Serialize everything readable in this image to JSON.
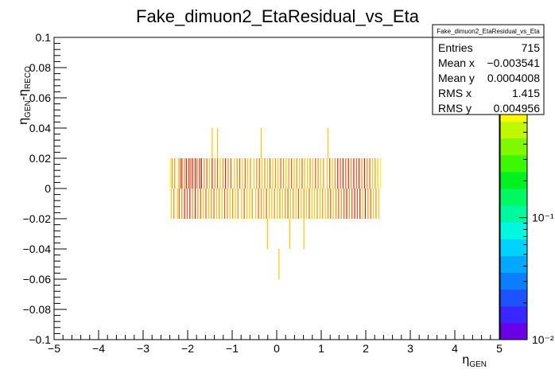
{
  "chart_data": {
    "type": "heatmap",
    "title": "Fake_dimuon2_EtaResidual_vs_Eta",
    "xlabel": "η_GEN",
    "ylabel": "η_GEN-η_RECO",
    "xlim": [
      -5,
      5
    ],
    "ylim": [
      -0.1,
      0.1
    ],
    "x_ticks": [
      "−5",
      "−4",
      "−3",
      "−2",
      "−1",
      "0",
      "1",
      "2",
      "3",
      "4",
      "5"
    ],
    "y_ticks": [
      "−0.1",
      "−0.08",
      "−0.06",
      "−0.04",
      "−0.02",
      "0",
      "0.02",
      "0.04",
      "0.06",
      "0.08",
      "0.1"
    ],
    "z_scale": "log",
    "z_ticks": [
      "10⁻²",
      "10⁻¹",
      "1"
    ],
    "z_range": [
      0.01,
      3
    ],
    "grid": false,
    "stats": {
      "name": "Fake_dimuon2_EtaResidual_vs_Eta",
      "rows": [
        {
          "label": "Entries",
          "value": "715"
        },
        {
          "label": "Mean x",
          "value": "−0.003541"
        },
        {
          "label": "Mean y",
          "value": "0.0004008"
        },
        {
          "label": "RMS x",
          "value": "1.415"
        },
        {
          "label": "RMS y",
          "value": "0.004956"
        }
      ]
    },
    "bins_dx": 0.02,
    "bins_dy": 0.02,
    "bins": [
      {
        "x": -2.4,
        "y": 0.01,
        "z": 0.8
      },
      {
        "x": -2.36,
        "y": 0.01,
        "z": 1.2
      },
      {
        "x": -2.3,
        "y": 0.01,
        "z": 1.5
      },
      {
        "x": -2.22,
        "y": 0.01,
        "z": 1.0
      },
      {
        "x": -2.18,
        "y": 0.01,
        "z": 2.0
      },
      {
        "x": -2.14,
        "y": 0.01,
        "z": 2.8
      },
      {
        "x": -2.08,
        "y": 0.01,
        "z": 1.4
      },
      {
        "x": -2.04,
        "y": 0.01,
        "z": 2.5
      },
      {
        "x": -1.98,
        "y": 0.01,
        "z": 2.9
      },
      {
        "x": -1.94,
        "y": 0.01,
        "z": 1.8
      },
      {
        "x": -1.9,
        "y": 0.01,
        "z": 2.6
      },
      {
        "x": -1.84,
        "y": 0.01,
        "z": 2.2
      },
      {
        "x": -1.8,
        "y": 0.01,
        "z": 1.6
      },
      {
        "x": -1.74,
        "y": 0.01,
        "z": 2.9
      },
      {
        "x": -1.7,
        "y": 0.01,
        "z": 2.4
      },
      {
        "x": -1.64,
        "y": 0.01,
        "z": 1.3
      },
      {
        "x": -1.58,
        "y": 0.01,
        "z": 2.0
      },
      {
        "x": -1.52,
        "y": 0.01,
        "z": 1.1
      },
      {
        "x": -1.46,
        "y": 0.01,
        "z": 2.7
      },
      {
        "x": -1.4,
        "y": 0.01,
        "z": 1.5
      },
      {
        "x": -1.34,
        "y": 0.01,
        "z": 1.9
      },
      {
        "x": -1.28,
        "y": 0.01,
        "z": 1.0
      },
      {
        "x": -1.22,
        "y": 0.01,
        "z": 1.4
      },
      {
        "x": -1.16,
        "y": 0.01,
        "z": 2.3
      },
      {
        "x": -1.1,
        "y": 0.01,
        "z": 1.2
      },
      {
        "x": -1.04,
        "y": 0.01,
        "z": 1.7
      },
      {
        "x": -0.96,
        "y": 0.01,
        "z": 1.0
      },
      {
        "x": -0.9,
        "y": 0.01,
        "z": 1.3
      },
      {
        "x": -0.84,
        "y": 0.01,
        "z": 2.0
      },
      {
        "x": -0.78,
        "y": 0.01,
        "z": 1.1
      },
      {
        "x": -0.72,
        "y": 0.01,
        "z": 1.6
      },
      {
        "x": -0.66,
        "y": 0.01,
        "z": 1.0
      },
      {
        "x": -0.6,
        "y": 0.01,
        "z": 1.4
      },
      {
        "x": -0.52,
        "y": 0.01,
        "z": 1.0
      },
      {
        "x": -0.46,
        "y": 0.01,
        "z": 1.2
      },
      {
        "x": -0.4,
        "y": 0.01,
        "z": 2.1
      },
      {
        "x": -0.34,
        "y": 0.01,
        "z": 1.0
      },
      {
        "x": -0.28,
        "y": 0.01,
        "z": 1.5
      },
      {
        "x": -0.22,
        "y": 0.01,
        "z": 1.0
      },
      {
        "x": -0.16,
        "y": 0.01,
        "z": 1.8
      },
      {
        "x": -0.1,
        "y": 0.01,
        "z": 1.1
      },
      {
        "x": -0.04,
        "y": 0.01,
        "z": 1.3
      },
      {
        "x": 0.02,
        "y": 0.01,
        "z": 1.0
      },
      {
        "x": 0.08,
        "y": 0.01,
        "z": 1.9
      },
      {
        "x": 0.14,
        "y": 0.01,
        "z": 1.2
      },
      {
        "x": 0.2,
        "y": 0.01,
        "z": 1.0
      },
      {
        "x": 0.26,
        "y": 0.01,
        "z": 1.4
      },
      {
        "x": 0.32,
        "y": 0.01,
        "z": 2.0
      },
      {
        "x": 0.38,
        "y": 0.01,
        "z": 1.0
      },
      {
        "x": 0.44,
        "y": 0.01,
        "z": 1.3
      },
      {
        "x": 0.5,
        "y": 0.01,
        "z": 1.0
      },
      {
        "x": 0.56,
        "y": 0.01,
        "z": 1.6
      },
      {
        "x": 0.62,
        "y": 0.01,
        "z": 1.1
      },
      {
        "x": 0.68,
        "y": 0.01,
        "z": 1.0
      },
      {
        "x": 0.74,
        "y": 0.01,
        "z": 1.5
      },
      {
        "x": 0.8,
        "y": 0.01,
        "z": 1.0
      },
      {
        "x": 0.86,
        "y": 0.01,
        "z": 1.9
      },
      {
        "x": 0.92,
        "y": 0.01,
        "z": 1.2
      },
      {
        "x": 0.98,
        "y": 0.01,
        "z": 1.0
      },
      {
        "x": 1.04,
        "y": 0.01,
        "z": 1.4
      },
      {
        "x": 1.12,
        "y": 0.01,
        "z": 1.0
      },
      {
        "x": 1.18,
        "y": 0.01,
        "z": 1.7
      },
      {
        "x": 1.24,
        "y": 0.01,
        "z": 1.0
      },
      {
        "x": 1.3,
        "y": 0.01,
        "z": 1.3
      },
      {
        "x": 1.36,
        "y": 0.01,
        "z": 2.2
      },
      {
        "x": 1.42,
        "y": 0.01,
        "z": 1.6
      },
      {
        "x": 1.48,
        "y": 0.01,
        "z": 2.6
      },
      {
        "x": 1.54,
        "y": 0.01,
        "z": 1.8
      },
      {
        "x": 1.6,
        "y": 0.01,
        "z": 2.4
      },
      {
        "x": 1.66,
        "y": 0.01,
        "z": 1.4
      },
      {
        "x": 1.72,
        "y": 0.01,
        "z": 2.9
      },
      {
        "x": 1.78,
        "y": 0.01,
        "z": 2.0
      },
      {
        "x": 1.84,
        "y": 0.01,
        "z": 2.7
      },
      {
        "x": 1.9,
        "y": 0.01,
        "z": 1.5
      },
      {
        "x": 1.96,
        "y": 0.01,
        "z": 2.2
      },
      {
        "x": 2.02,
        "y": 0.01,
        "z": 1.2
      },
      {
        "x": 2.08,
        "y": 0.01,
        "z": 1.8
      },
      {
        "x": 2.14,
        "y": 0.01,
        "z": 1.0
      },
      {
        "x": 2.2,
        "y": 0.01,
        "z": 1.4
      },
      {
        "x": 2.26,
        "y": 0.01,
        "z": 1.0
      },
      {
        "x": 2.32,
        "y": 0.01,
        "z": 0.8
      },
      {
        "x": -2.38,
        "y": -0.01,
        "z": 1.0
      },
      {
        "x": -2.32,
        "y": -0.01,
        "z": 1.4
      },
      {
        "x": -2.24,
        "y": -0.01,
        "z": 1.1
      },
      {
        "x": -2.2,
        "y": -0.01,
        "z": 1.8
      },
      {
        "x": -2.14,
        "y": -0.01,
        "z": 1.3
      },
      {
        "x": -2.08,
        "y": -0.01,
        "z": 2.4
      },
      {
        "x": -2.02,
        "y": -0.01,
        "z": 1.6
      },
      {
        "x": -1.96,
        "y": -0.01,
        "z": 2.2
      },
      {
        "x": -1.9,
        "y": -0.01,
        "z": 1.2
      },
      {
        "x": -1.84,
        "y": -0.01,
        "z": 2.6
      },
      {
        "x": -1.78,
        "y": -0.01,
        "z": 1.5
      },
      {
        "x": -1.72,
        "y": -0.01,
        "z": 2.0
      },
      {
        "x": -1.66,
        "y": -0.01,
        "z": 1.1
      },
      {
        "x": -1.6,
        "y": -0.01,
        "z": 1.7
      },
      {
        "x": -1.54,
        "y": -0.01,
        "z": 1.0
      },
      {
        "x": -1.48,
        "y": -0.01,
        "z": 1.4
      },
      {
        "x": -1.42,
        "y": -0.01,
        "z": 2.1
      },
      {
        "x": -1.36,
        "y": -0.01,
        "z": 1.0
      },
      {
        "x": -1.3,
        "y": -0.01,
        "z": 1.3
      },
      {
        "x": -1.24,
        "y": -0.01,
        "z": 1.0
      },
      {
        "x": -1.18,
        "y": -0.01,
        "z": 1.9
      },
      {
        "x": -1.12,
        "y": -0.01,
        "z": 1.2
      },
      {
        "x": -1.06,
        "y": -0.01,
        "z": 1.0
      },
      {
        "x": -1.0,
        "y": -0.01,
        "z": 1.5
      },
      {
        "x": -0.94,
        "y": -0.01,
        "z": 1.0
      },
      {
        "x": -0.88,
        "y": -0.01,
        "z": 1.3
      },
      {
        "x": -0.8,
        "y": -0.01,
        "z": 1.0
      },
      {
        "x": -0.74,
        "y": -0.01,
        "z": 1.8
      },
      {
        "x": -0.68,
        "y": -0.01,
        "z": 1.1
      },
      {
        "x": -0.62,
        "y": -0.01,
        "z": 1.0
      },
      {
        "x": -0.56,
        "y": -0.01,
        "z": 1.4
      },
      {
        "x": -0.48,
        "y": -0.01,
        "z": 1.0
      },
      {
        "x": -0.42,
        "y": -0.01,
        "z": 1.6
      },
      {
        "x": -0.36,
        "y": -0.01,
        "z": 1.2
      },
      {
        "x": -0.3,
        "y": -0.01,
        "z": 1.0
      },
      {
        "x": -0.24,
        "y": -0.01,
        "z": 2.0
      },
      {
        "x": -0.18,
        "y": -0.01,
        "z": 1.1
      },
      {
        "x": -0.12,
        "y": -0.01,
        "z": 1.0
      },
      {
        "x": -0.06,
        "y": -0.01,
        "z": 1.4
      },
      {
        "x": 0.0,
        "y": -0.01,
        "z": 1.0
      },
      {
        "x": 0.06,
        "y": -0.01,
        "z": 1.5
      },
      {
        "x": 0.12,
        "y": -0.01,
        "z": 1.0
      },
      {
        "x": 0.18,
        "y": -0.01,
        "z": 1.3
      },
      {
        "x": 0.24,
        "y": -0.01,
        "z": 1.9
      },
      {
        "x": 0.3,
        "y": -0.01,
        "z": 1.0
      },
      {
        "x": 0.36,
        "y": -0.01,
        "z": 1.2
      },
      {
        "x": 0.42,
        "y": -0.01,
        "z": 1.0
      },
      {
        "x": 0.48,
        "y": -0.01,
        "z": 1.6
      },
      {
        "x": 0.54,
        "y": -0.01,
        "z": 1.0
      },
      {
        "x": 0.6,
        "y": -0.01,
        "z": 1.4
      },
      {
        "x": 0.66,
        "y": -0.01,
        "z": 1.0
      },
      {
        "x": 0.72,
        "y": -0.01,
        "z": 2.0
      },
      {
        "x": 0.78,
        "y": -0.01,
        "z": 1.1
      },
      {
        "x": 0.84,
        "y": -0.01,
        "z": 1.0
      },
      {
        "x": 0.9,
        "y": -0.01,
        "z": 1.3
      },
      {
        "x": 0.96,
        "y": -0.01,
        "z": 1.0
      },
      {
        "x": 1.02,
        "y": -0.01,
        "z": 1.5
      },
      {
        "x": 1.08,
        "y": -0.01,
        "z": 1.0
      },
      {
        "x": 1.14,
        "y": -0.01,
        "z": 1.2
      },
      {
        "x": 1.2,
        "y": -0.01,
        "z": 1.7
      },
      {
        "x": 1.26,
        "y": -0.01,
        "z": 1.0
      },
      {
        "x": 1.32,
        "y": -0.01,
        "z": 1.4
      },
      {
        "x": 1.38,
        "y": -0.01,
        "z": 2.1
      },
      {
        "x": 1.44,
        "y": -0.01,
        "z": 1.2
      },
      {
        "x": 1.5,
        "y": -0.01,
        "z": 1.8
      },
      {
        "x": 1.56,
        "y": -0.01,
        "z": 2.4
      },
      {
        "x": 1.62,
        "y": -0.01,
        "z": 1.3
      },
      {
        "x": 1.68,
        "y": -0.01,
        "z": 2.0
      },
      {
        "x": 1.74,
        "y": -0.01,
        "z": 2.9
      },
      {
        "x": 1.8,
        "y": -0.01,
        "z": 1.6
      },
      {
        "x": 1.86,
        "y": -0.01,
        "z": 2.5
      },
      {
        "x": 1.92,
        "y": -0.01,
        "z": 1.1
      },
      {
        "x": 1.98,
        "y": -0.01,
        "z": 2.2
      },
      {
        "x": 2.04,
        "y": -0.01,
        "z": 1.4
      },
      {
        "x": 2.1,
        "y": -0.01,
        "z": 2.0
      },
      {
        "x": 2.16,
        "y": -0.01,
        "z": 1.0
      },
      {
        "x": 2.22,
        "y": -0.01,
        "z": 1.3
      },
      {
        "x": 2.28,
        "y": -0.01,
        "z": 1.0
      },
      {
        "x": -1.46,
        "y": 0.03,
        "z": 1.0
      },
      {
        "x": -1.34,
        "y": 0.03,
        "z": 1.0
      },
      {
        "x": -0.36,
        "y": 0.03,
        "z": 1.0
      },
      {
        "x": 1.14,
        "y": 0.03,
        "z": 1.0
      },
      {
        "x": -0.22,
        "y": -0.03,
        "z": 1.0
      },
      {
        "x": 0.28,
        "y": -0.03,
        "z": 1.0
      },
      {
        "x": 0.6,
        "y": -0.03,
        "z": 1.0
      },
      {
        "x": 0.04,
        "y": -0.05,
        "z": 1.0
      }
    ]
  }
}
